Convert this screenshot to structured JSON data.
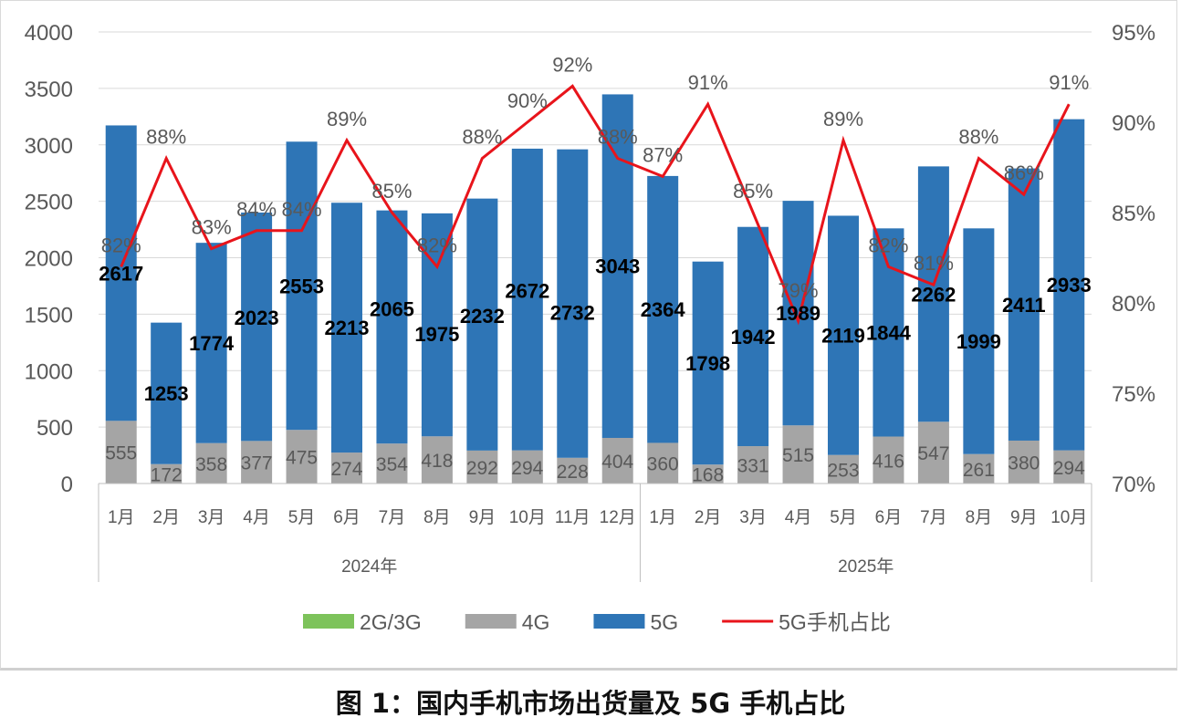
{
  "chart_data": {
    "type": "bar",
    "stacked": true,
    "title": "图 1：国内手机市场出货量及 5G 手机占比",
    "year_groups": [
      {
        "label": "2024年",
        "months": [
          "1月",
          "2月",
          "3月",
          "4月",
          "5月",
          "6月",
          "7月",
          "8月",
          "9月",
          "10月",
          "11月",
          "12月"
        ]
      },
      {
        "label": "2025年",
        "months": [
          "1月",
          "2月",
          "3月",
          "4月",
          "5月",
          "6月",
          "7月",
          "8月",
          "9月",
          "10月"
        ]
      }
    ],
    "ylim": [
      0,
      4000
    ],
    "yticks": [
      0,
      500,
      1000,
      1500,
      2000,
      2500,
      3000,
      3500,
      4000
    ],
    "y2lim": [
      70,
      95
    ],
    "y2ticks": [
      "70%",
      "75%",
      "80%",
      "85%",
      "90%",
      "95%"
    ],
    "grid": true,
    "legend_position": "bottom",
    "series": [
      {
        "name": "2G/3G",
        "type": "bar",
        "color": "#7dc35b",
        "values": [
          0,
          0,
          0,
          0,
          0,
          0,
          0,
          0,
          0,
          0,
          0,
          0,
          0,
          0,
          0,
          0,
          0,
          0,
          0,
          0,
          0,
          0
        ]
      },
      {
        "name": "4G",
        "type": "bar",
        "color": "#a5a5a5",
        "values": [
          555,
          172,
          358,
          377,
          475,
          274,
          354,
          418,
          292,
          294,
          228,
          404,
          360,
          168,
          331,
          515,
          253,
          416,
          547,
          261,
          380,
          294
        ]
      },
      {
        "name": "5G",
        "type": "bar",
        "color": "#2e75b6",
        "values": [
          2617,
          1253,
          1774,
          2023,
          2553,
          2213,
          2065,
          1975,
          2232,
          2672,
          2732,
          3043,
          2364,
          1798,
          1942,
          1989,
          2119,
          1844,
          2262,
          1999,
          2411,
          2933
        ]
      },
      {
        "name": "5G手机占比",
        "type": "line",
        "axis": "right",
        "color": "#e8141b",
        "values": [
          82,
          88,
          83,
          84,
          84,
          89,
          85,
          82,
          88,
          90,
          92,
          88,
          87,
          91,
          85,
          79,
          89,
          82,
          81,
          88,
          86,
          91
        ]
      }
    ]
  }
}
